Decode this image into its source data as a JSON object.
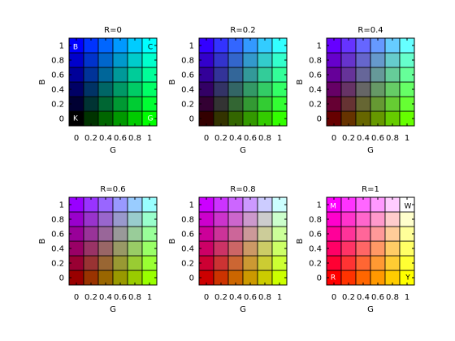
{
  "chart_data": [
    {
      "type": "heatmap",
      "title": "R=0",
      "r": 0,
      "xlabel": "G",
      "ylabel": "B",
      "x": [
        0,
        0.2,
        0.4,
        0.6,
        0.8,
        1
      ],
      "y": [
        0,
        0.2,
        0.4,
        0.6,
        0.8,
        1
      ],
      "xtick_labels": [
        "0",
        "0.2",
        "0.4",
        "0.6",
        "0.8",
        "1"
      ],
      "ytick_labels": [
        "0",
        "0.2",
        "0.4",
        "0.6",
        "0.8",
        "1"
      ],
      "annotations": [
        {
          "text": "B",
          "g": 0,
          "b": 1
        },
        {
          "text": "C",
          "g": 1,
          "b": 1
        },
        {
          "text": "K",
          "g": 0,
          "b": 0
        },
        {
          "text": "G",
          "g": 1,
          "b": 0
        }
      ]
    },
    {
      "type": "heatmap",
      "title": "R=0.2",
      "r": 0.2,
      "xlabel": "G",
      "ylabel": "B",
      "x": [
        0,
        0.2,
        0.4,
        0.6,
        0.8,
        1
      ],
      "y": [
        0,
        0.2,
        0.4,
        0.6,
        0.8,
        1
      ],
      "xtick_labels": [
        "0",
        "0.2",
        "0.4",
        "0.6",
        "0.8",
        "1"
      ],
      "ytick_labels": [
        "0",
        "0.2",
        "0.4",
        "0.6",
        "0.8",
        "1"
      ],
      "annotations": []
    },
    {
      "type": "heatmap",
      "title": "R=0.4",
      "r": 0.4,
      "xlabel": "G",
      "ylabel": "B",
      "x": [
        0,
        0.2,
        0.4,
        0.6,
        0.8,
        1
      ],
      "y": [
        0,
        0.2,
        0.4,
        0.6,
        0.8,
        1
      ],
      "xtick_labels": [
        "0",
        "0.2",
        "0.4",
        "0.6",
        "0.8",
        "1"
      ],
      "ytick_labels": [
        "0",
        "0.2",
        "0.4",
        "0.6",
        "0.8",
        "1"
      ],
      "annotations": []
    },
    {
      "type": "heatmap",
      "title": "R=0.6",
      "r": 0.6,
      "xlabel": "G",
      "ylabel": "B",
      "x": [
        0,
        0.2,
        0.4,
        0.6,
        0.8,
        1
      ],
      "y": [
        0,
        0.2,
        0.4,
        0.6,
        0.8,
        1
      ],
      "xtick_labels": [
        "0",
        "0.2",
        "0.4",
        "0.6",
        "0.8",
        "1"
      ],
      "ytick_labels": [
        "0",
        "0.2",
        "0.4",
        "0.6",
        "0.8",
        "1"
      ],
      "annotations": []
    },
    {
      "type": "heatmap",
      "title": "R=0.8",
      "r": 0.8,
      "xlabel": "G",
      "ylabel": "B",
      "x": [
        0,
        0.2,
        0.4,
        0.6,
        0.8,
        1
      ],
      "y": [
        0,
        0.2,
        0.4,
        0.6,
        0.8,
        1
      ],
      "xtick_labels": [
        "0",
        "0.2",
        "0.4",
        "0.6",
        "0.8",
        "1"
      ],
      "ytick_labels": [
        "0",
        "0.2",
        "0.4",
        "0.6",
        "0.8",
        "1"
      ],
      "annotations": []
    },
    {
      "type": "heatmap",
      "title": "R=1",
      "r": 1,
      "xlabel": "G",
      "ylabel": "B",
      "x": [
        0,
        0.2,
        0.4,
        0.6,
        0.8,
        1
      ],
      "y": [
        0,
        0.2,
        0.4,
        0.6,
        0.8,
        1
      ],
      "xtick_labels": [
        "0",
        "0.2",
        "0.4",
        "0.6",
        "0.8",
        "1"
      ],
      "ytick_labels": [
        "0",
        "0.2",
        "0.4",
        "0.6",
        "0.8",
        "1"
      ],
      "annotations": [
        {
          "text": "M",
          "g": 0,
          "b": 1
        },
        {
          "text": "W",
          "g": 1,
          "b": 1
        },
        {
          "text": "R",
          "g": 0,
          "b": 0
        },
        {
          "text": "Y",
          "g": 1,
          "b": 0
        }
      ]
    }
  ]
}
